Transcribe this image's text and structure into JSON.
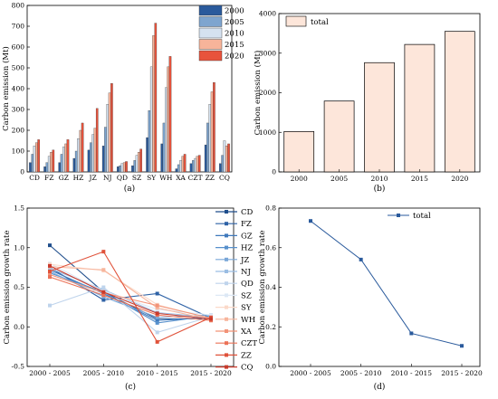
{
  "colors": {
    "2000": "#2a5a9c",
    "2005": "#7ea5cf",
    "2010": "#d5e2f0",
    "2015": "#f7b49a",
    "2020": "#e8533c",
    "total_fill": "#fde6da",
    "total_line": "#2a5a9c"
  },
  "chart_data": [
    {
      "id": "a",
      "type": "bar",
      "caption": "(a)",
      "ylabel": "Carbon emission (Mt)",
      "xlabel": "",
      "ylim": [
        0,
        800
      ],
      "yticks": [
        0,
        100,
        200,
        300,
        400,
        500,
        600,
        700,
        800
      ],
      "legend": "top-right",
      "categories": [
        "CD",
        "FZ",
        "GZ",
        "HZ",
        "JZ",
        "NJ",
        "QD",
        "SZ",
        "SY",
        "WH",
        "XA",
        "CZT",
        "ZZ",
        "CQ"
      ],
      "series": [
        {
          "name": "2000",
          "values": [
            45,
            25,
            45,
            65,
            105,
            125,
            25,
            30,
            165,
            135,
            15,
            40,
            130,
            40
          ]
        },
        {
          "name": "2005",
          "values": [
            85,
            45,
            85,
            100,
            140,
            215,
            30,
            55,
            295,
            235,
            35,
            55,
            235,
            80
          ]
        },
        {
          "name": "2010",
          "values": [
            125,
            75,
            120,
            160,
            180,
            325,
            40,
            80,
            505,
            405,
            55,
            65,
            325,
            150
          ]
        },
        {
          "name": "2015",
          "values": [
            140,
            95,
            135,
            200,
            210,
            380,
            45,
            95,
            655,
            505,
            75,
            75,
            385,
            125
          ]
        },
        {
          "name": "2020",
          "values": [
            155,
            105,
            155,
            235,
            305,
            425,
            50,
            110,
            715,
            555,
            85,
            80,
            430,
            135
          ]
        }
      ]
    },
    {
      "id": "b",
      "type": "bar",
      "caption": "(b)",
      "ylabel": "Carbon emission (Mt)",
      "xlabel": "",
      "ylim": [
        0,
        4000
      ],
      "yticks": [
        0,
        1000,
        2000,
        3000,
        4000
      ],
      "legend": "top-left",
      "categories": [
        "2000",
        "2005",
        "2010",
        "2015",
        "2020"
      ],
      "series": [
        {
          "name": "total",
          "values": [
            1020,
            1790,
            2760,
            3220,
            3550
          ]
        }
      ]
    },
    {
      "id": "c",
      "type": "line",
      "caption": "(c)",
      "ylabel": "Carbon emission growth rate",
      "xlabel": "",
      "ylim": [
        -0.5,
        1.5
      ],
      "yticks": [
        -0.5,
        0.0,
        0.5,
        1.0,
        1.5
      ],
      "legend": "right",
      "categories": [
        "2000 - 2005",
        "2005 - 2010",
        "2010 - 2015",
        "2015 - 2020"
      ],
      "series": [
        {
          "name": "CD",
          "color": "#1f4e8c",
          "values": [
            1.03,
            0.44,
            0.1,
            0.1
          ]
        },
        {
          "name": "FZ",
          "color": "#2e62a6",
          "values": [
            0.75,
            0.34,
            0.42,
            0.11
          ]
        },
        {
          "name": "GZ",
          "color": "#3f79bc",
          "values": [
            0.72,
            0.42,
            0.08,
            0.12
          ]
        },
        {
          "name": "HZ",
          "color": "#5790cc",
          "values": [
            0.68,
            0.44,
            0.05,
            0.14
          ]
        },
        {
          "name": "JZ",
          "color": "#7aa7d8",
          "values": [
            0.7,
            0.38,
            0.12,
            0.15
          ]
        },
        {
          "name": "NJ",
          "color": "#9bbde3",
          "values": [
            0.74,
            0.47,
            0.18,
            0.12
          ]
        },
        {
          "name": "QD",
          "color": "#bfd4ec",
          "values": [
            0.27,
            0.5,
            -0.07,
            0.13
          ]
        },
        {
          "name": "SZ",
          "color": "#dde8f5",
          "values": [
            0.8,
            0.45,
            0.22,
            0.15
          ]
        },
        {
          "name": "SY",
          "color": "#fbd9c9",
          "values": [
            0.79,
            0.71,
            0.28,
            0.1
          ]
        },
        {
          "name": "WH",
          "color": "#f7b59c",
          "values": [
            0.76,
            0.72,
            0.24,
            0.09
          ]
        },
        {
          "name": "XA",
          "color": "#f29378",
          "values": [
            0.66,
            0.43,
            0.27,
            0.11
          ]
        },
        {
          "name": "CZT",
          "color": "#ec7257",
          "values": [
            0.63,
            0.4,
            0.15,
            0.08
          ]
        },
        {
          "name": "ZZ",
          "color": "#e0523a",
          "values": [
            0.7,
            0.95,
            -0.19,
            0.12
          ]
        },
        {
          "name": "CQ",
          "color": "#c83a2c",
          "values": [
            0.77,
            0.44,
            0.17,
            0.1
          ]
        }
      ]
    },
    {
      "id": "d",
      "type": "line",
      "caption": "(d)",
      "ylabel": "Carbon emission growth rate",
      "xlabel": "",
      "ylim": [
        0,
        0.8
      ],
      "yticks": [
        0.0,
        0.2,
        0.4,
        0.6,
        0.8
      ],
      "legend": "top-center",
      "categories": [
        "2000 - 2005",
        "2005 - 2010",
        "2010 - 2015",
        "2015 - 2020"
      ],
      "series": [
        {
          "name": "total",
          "color": "#2a5a9c",
          "values": [
            0.735,
            0.54,
            0.167,
            0.104
          ]
        }
      ]
    }
  ]
}
